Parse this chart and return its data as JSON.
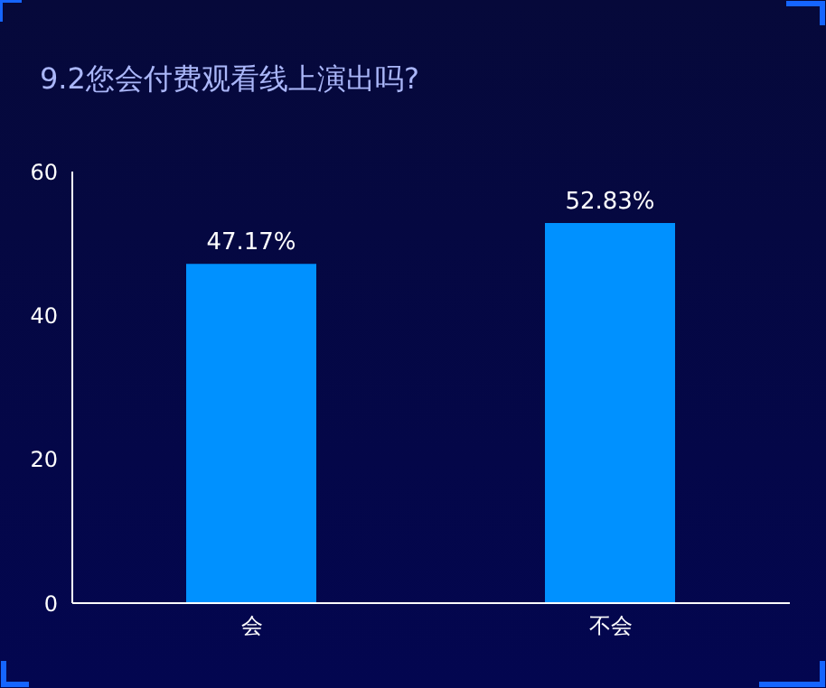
{
  "chart_data": {
    "type": "bar",
    "title": "9.2您会付费观看线上演出吗?",
    "categories": [
      "会",
      "不会"
    ],
    "values": [
      47.17,
      52.83
    ],
    "value_labels": [
      "47.17%",
      "52.83%"
    ],
    "color": "#0091ff",
    "ylim": [
      0,
      60
    ],
    "yticks": [
      0,
      20,
      40,
      60
    ],
    "grid": false,
    "legend": false
  }
}
